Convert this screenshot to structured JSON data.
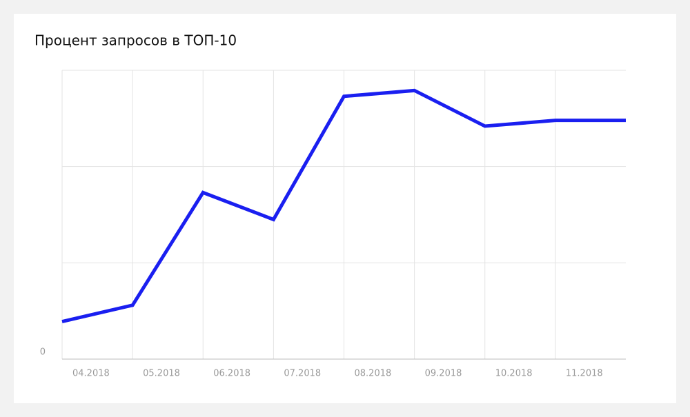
{
  "chart_data": {
    "type": "line",
    "title": "Процент запросов в ТОП-10",
    "categories": [
      "04.2018",
      "05.2018",
      "06.2018",
      "07.2018",
      "08.2018",
      "09.2018",
      "10.2018",
      "11.2018",
      null
    ],
    "series": [
      {
        "color": "#1a1ff0",
        "values": [
          0.39,
          0.56,
          1.73,
          1.45,
          2.73,
          2.79,
          2.42,
          2.48,
          2.48
        ]
      }
    ],
    "ylim": [
      0,
      3
    ],
    "yticks": [
      0,
      {
        "value": 1,
        "label": null
      },
      {
        "value": 2,
        "label": null
      },
      {
        "value": 3,
        "label": null
      }
    ],
    "grid": true
  }
}
